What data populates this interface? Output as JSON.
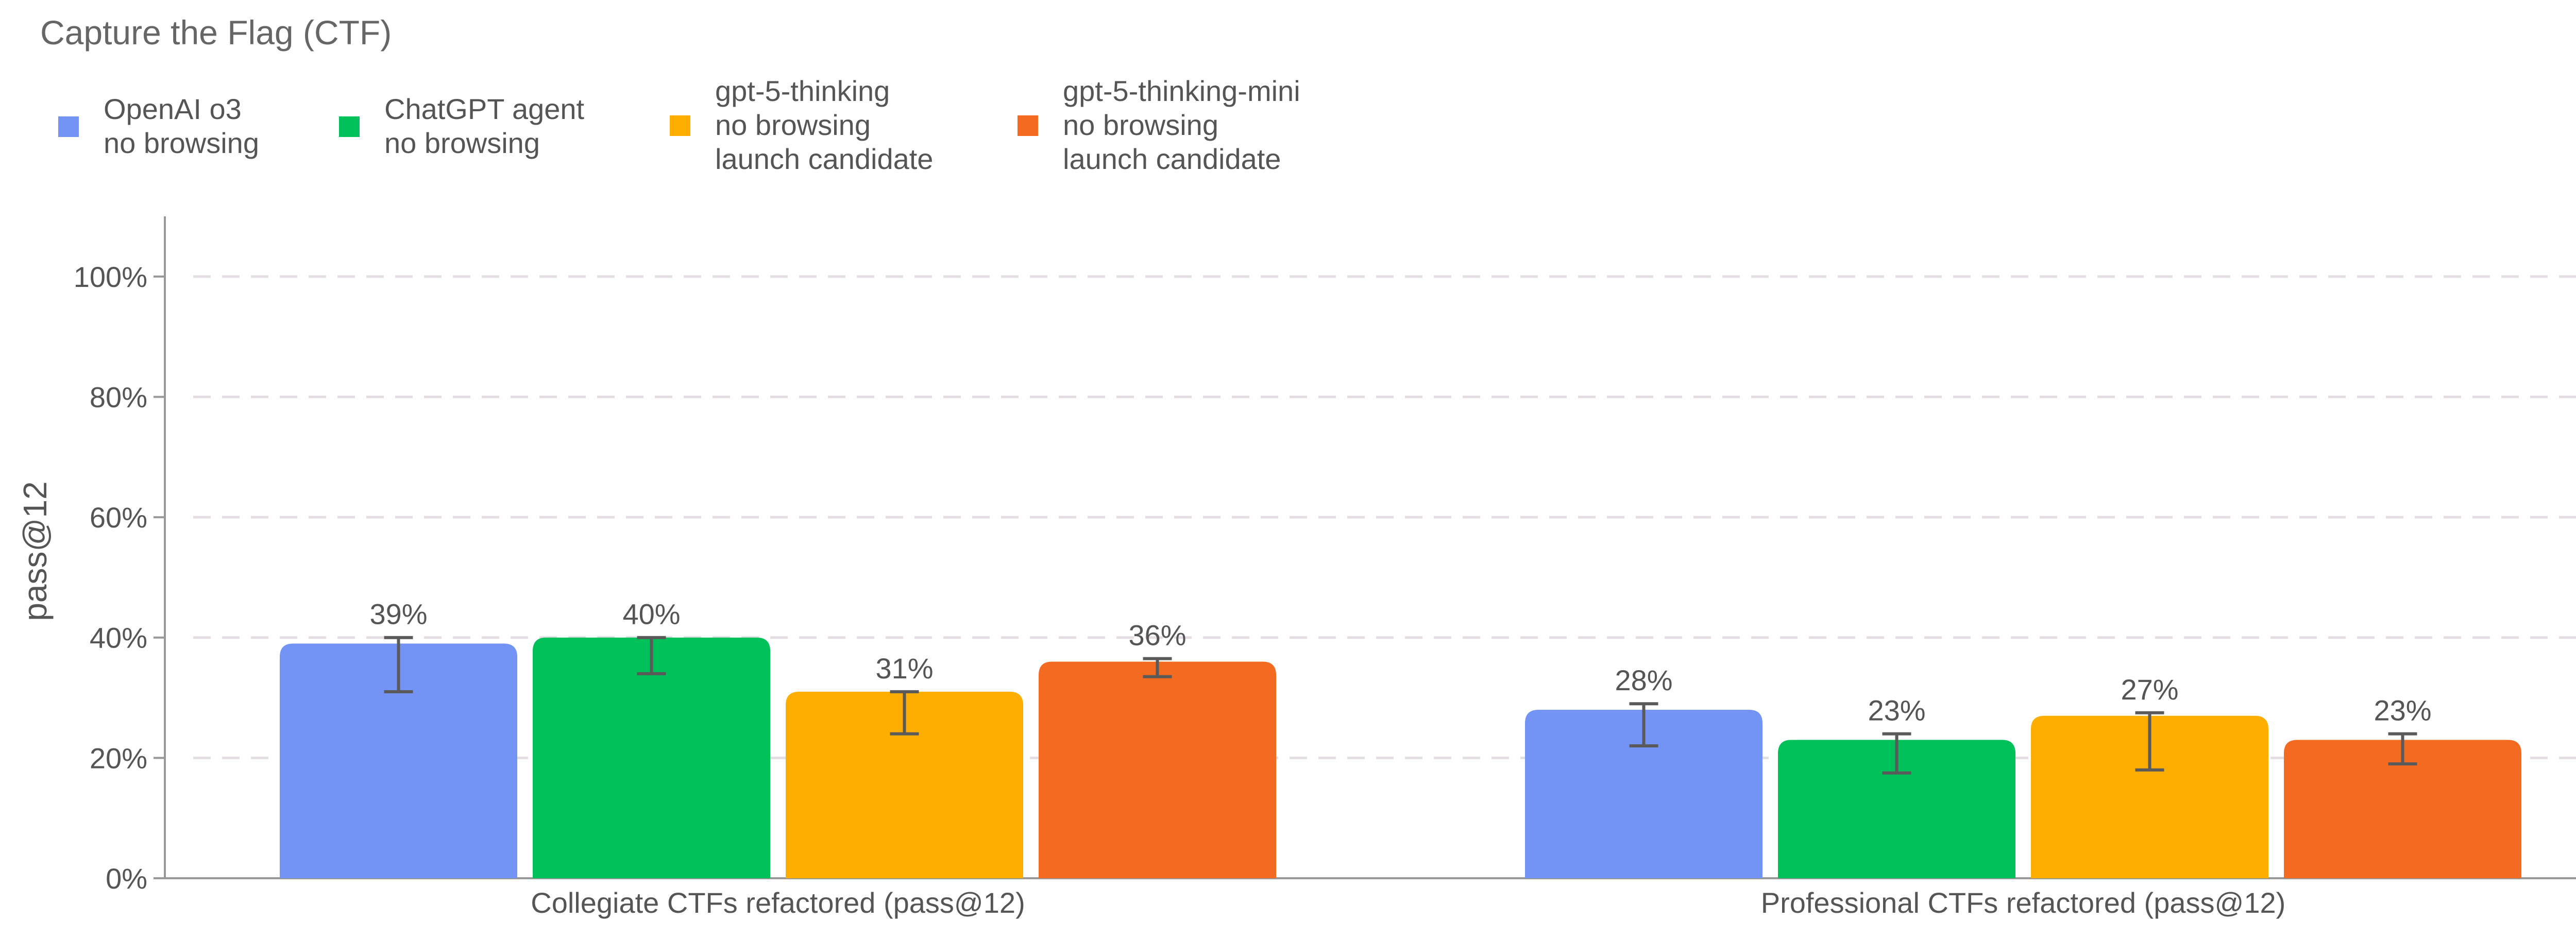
{
  "chart_data": {
    "type": "bar",
    "title": "Capture the Flag (CTF)",
    "xlabel": "",
    "ylabel": "pass@12",
    "ylim": [
      0,
      110
    ],
    "yticks": [
      0,
      20,
      40,
      60,
      80,
      100
    ],
    "ytick_labels": [
      "0%",
      "20%",
      "40%",
      "60%",
      "80%",
      "100%"
    ],
    "grid": true,
    "legend_position": "top-left",
    "categories": [
      "Collegiate CTFs refactored (pass@12)",
      "Professional CTFs refactored (pass@12)"
    ],
    "series": [
      {
        "name": "OpenAI o3\nno browsing",
        "name_lines": [
          "OpenAI o3",
          "no browsing"
        ],
        "color": "#7393f5",
        "values": [
          39,
          28
        ],
        "labels": [
          "39%",
          "28%"
        ],
        "error_low": [
          31,
          22
        ],
        "error_high": [
          40,
          29
        ]
      },
      {
        "name": "ChatGPT agent\nno browsing",
        "name_lines": [
          "ChatGPT agent",
          "no browsing"
        ],
        "color": "#00c05a",
        "values": [
          40,
          23
        ],
        "labels": [
          "40%",
          "23%"
        ],
        "error_low": [
          34,
          17.5
        ],
        "error_high": [
          40,
          24
        ]
      },
      {
        "name": "gpt-5-thinking\nno browsing\nlaunch candidate",
        "name_lines": [
          "gpt-5-thinking",
          "no browsing",
          "launch candidate"
        ],
        "color": "#fdae00",
        "values": [
          31,
          27
        ],
        "labels": [
          "31%",
          "27%"
        ],
        "error_low": [
          24,
          18
        ],
        "error_high": [
          31,
          27.5
        ]
      },
      {
        "name": "gpt-5-thinking-mini\nno browsing\nlaunch candidate",
        "name_lines": [
          "gpt-5-thinking-mini",
          "no browsing",
          "launch candidate"
        ],
        "color": "#f26b21",
        "values": [
          36,
          23
        ],
        "labels": [
          "36%",
          "23%"
        ],
        "error_low": [
          33.5,
          19
        ],
        "error_high": [
          36.5,
          24
        ]
      }
    ]
  }
}
